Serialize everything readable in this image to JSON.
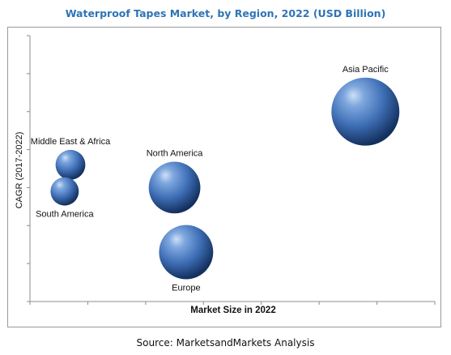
{
  "chart_data": {
    "type": "bubble",
    "title": "Waterproof Tapes Market, by Region, 2022 (USD Billion)",
    "xlabel": "Market Size in 2022",
    "ylabel": "CAGR (2017-2022)",
    "xlim": [
      0,
      7
    ],
    "ylim": [
      0,
      7
    ],
    "grid": false,
    "legend": "none",
    "bubble_color": "#3f6fb6",
    "series": [
      {
        "name": "Asia Pacific",
        "x": 5.8,
        "y": 5.0,
        "size": 5.2,
        "label_position": "top"
      },
      {
        "name": "North America",
        "x": 2.5,
        "y": 3.0,
        "size": 3.0,
        "label_position": "top"
      },
      {
        "name": "Europe",
        "x": 2.7,
        "y": 1.3,
        "size": 3.3,
        "label_position": "bottom"
      },
      {
        "name": "Middle East & Africa",
        "x": 0.7,
        "y": 3.6,
        "size": 1.0,
        "label_position": "top"
      },
      {
        "name": "South America",
        "x": 0.6,
        "y": 2.9,
        "size": 0.9,
        "label_position": "bottom"
      }
    ]
  },
  "source": "Source: MarketsandMarkets Analysis"
}
